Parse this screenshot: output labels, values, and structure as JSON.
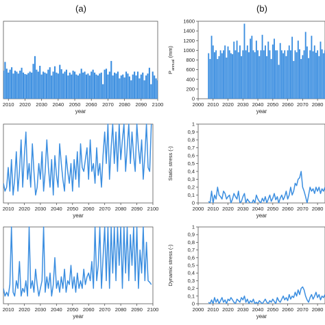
{
  "panel_labels": [
    "(a)",
    "(b)"
  ],
  "chart_data": [
    {
      "id": "a1",
      "type": "bar",
      "title": "",
      "xlabel": "year",
      "ylabel": "",
      "xlim": [
        2007,
        2100
      ],
      "ylim": [
        0,
        1600
      ],
      "show_y_ticks": false,
      "xticks": [
        "2010",
        "2020",
        "2030",
        "2040",
        "2050",
        "2060",
        "2070",
        "2080",
        "2090",
        "2100"
      ],
      "x_start": 2007,
      "values": [
        580,
        760,
        620,
        540,
        600,
        650,
        520,
        580,
        560,
        520,
        580,
        640,
        540,
        510,
        500,
        530,
        560,
        540,
        720,
        880,
        600,
        560,
        680,
        500,
        560,
        540,
        520,
        600,
        650,
        480,
        560,
        670,
        540,
        520,
        700,
        610,
        520,
        560,
        600,
        480,
        540,
        500,
        580,
        560,
        500,
        480,
        520,
        620,
        540,
        560,
        500,
        520,
        480,
        560,
        600,
        540,
        500,
        480,
        520,
        540,
        300,
        600,
        620,
        500,
        560,
        780,
        480,
        540,
        520,
        560,
        420,
        480,
        500,
        440,
        560,
        520,
        460,
        380,
        500,
        560,
        480,
        560,
        420,
        500,
        540,
        380,
        480,
        520,
        640,
        300,
        560,
        480,
        420,
        380
      ]
    },
    {
      "id": "b1",
      "type": "bar",
      "title": "",
      "xlabel": "year",
      "ylabel": "P_annual (mm)",
      "xlim": [
        2000,
        2085
      ],
      "ylim": [
        0,
        1600
      ],
      "xticks": [
        "2000",
        "2010",
        "2020",
        "2030",
        "2040",
        "2050",
        "2060",
        "2070",
        "2080"
      ],
      "yticks": [
        "0",
        "200",
        "400",
        "600",
        "800",
        "1000",
        "1200",
        "1400",
        "1600"
      ],
      "x_start": 2007,
      "values": [
        940,
        820,
        1300,
        1100,
        960,
        1000,
        820,
        880,
        1000,
        940,
        1000,
        1100,
        850,
        1080,
        1000,
        940,
        920,
        1180,
        1000,
        1200,
        960,
        1100,
        880,
        1000,
        1550,
        1000,
        1100,
        960,
        1240,
        1300,
        1000,
        960,
        1200,
        1000,
        880,
        1000,
        1320,
        1000,
        1100,
        880,
        1180,
        1000,
        820,
        1120,
        1240,
        1000,
        1000,
        700,
        1150,
        1000,
        940,
        1000,
        880,
        1000,
        1100,
        1000,
        1280,
        780,
        1000,
        960,
        1200,
        1020,
        820,
        900,
        1000,
        1380,
        1080,
        840,
        1000,
        1300,
        980,
        1100,
        950,
        1000,
        880,
        1180,
        1020,
        940,
        1000
      ]
    },
    {
      "id": "a2",
      "type": "line",
      "title": "",
      "xlabel": "year",
      "ylabel": "",
      "xlim": [
        2007,
        2100
      ],
      "ylim": [
        0,
        1
      ],
      "show_y_ticks": false,
      "xticks": [
        "2010",
        "2020",
        "2030",
        "2040",
        "2050",
        "2060",
        "2070",
        "2080",
        "2090",
        "2100"
      ],
      "x": [
        2007,
        2008,
        2009,
        2010,
        2011,
        2012,
        2013,
        2014,
        2015,
        2016,
        2017,
        2018,
        2019,
        2020,
        2021,
        2022,
        2023,
        2024,
        2025,
        2026,
        2027,
        2028,
        2029,
        2030,
        2031,
        2032,
        2033,
        2034,
        2035,
        2036,
        2037,
        2038,
        2039,
        2040,
        2041,
        2042,
        2043,
        2044,
        2045,
        2046,
        2047,
        2048,
        2049,
        2050,
        2051,
        2052,
        2053,
        2054,
        2055,
        2056,
        2057,
        2058,
        2059,
        2060,
        2061,
        2062,
        2063,
        2064,
        2065,
        2066,
        2067,
        2068,
        2069,
        2070,
        2071,
        2072,
        2073,
        2074,
        2075,
        2076,
        2077,
        2078,
        2079,
        2080,
        2081,
        2082,
        2083,
        2084,
        2085,
        2086,
        2087,
        2088,
        2089,
        2090,
        2091,
        2092,
        2093,
        2094,
        2095,
        2096,
        2097,
        2098,
        2099
      ],
      "y": [
        0.25,
        0.15,
        0.2,
        0.45,
        0.15,
        0.55,
        0.1,
        0.3,
        0.65,
        0.15,
        0.4,
        0.8,
        0.2,
        0.6,
        0.9,
        0.3,
        0.5,
        0.2,
        0.75,
        0.4,
        0.1,
        0.2,
        0.5,
        0.3,
        0.65,
        0.15,
        0.4,
        0.8,
        0.45,
        0.2,
        0.55,
        0.1,
        0.6,
        0.35,
        0.2,
        0.75,
        0.5,
        0.3,
        0.15,
        0.6,
        0.4,
        0.25,
        0.5,
        0.15,
        0.55,
        0.3,
        0.65,
        0.2,
        0.75,
        0.45,
        0.4,
        0.55,
        0.7,
        0.3,
        0.8,
        0.4,
        0.5,
        0.25,
        0.7,
        0.35,
        0.5,
        0.2,
        0.6,
        0.9,
        0.5,
        1.0,
        0.3,
        0.7,
        1.0,
        0.5,
        0.9,
        0.4,
        1.0,
        0.55,
        0.8,
        1.0,
        0.4,
        0.7,
        1.0,
        0.5,
        0.9,
        0.6,
        0.4,
        1.0,
        0.7,
        0.5,
        0.8,
        0.3,
        0.6,
        1.0,
        0.45,
        0.4,
        1.0
      ]
    },
    {
      "id": "b2",
      "type": "line",
      "title": "",
      "xlabel": "year",
      "ylabel": "Static stress (-)",
      "xlim": [
        2000,
        2085
      ],
      "ylim": [
        0,
        1
      ],
      "xticks": [
        "2000",
        "2010",
        "2020",
        "2030",
        "2040",
        "2050",
        "2060",
        "2070",
        "2080"
      ],
      "yticks": [
        "0",
        "0,1",
        "0,2",
        "0,3",
        "0,4",
        "0,5",
        "0,6",
        "0,7",
        "0,8",
        "0,9",
        "1"
      ],
      "x": [
        2007,
        2008,
        2009,
        2010,
        2011,
        2012,
        2013,
        2014,
        2015,
        2016,
        2017,
        2018,
        2019,
        2020,
        2021,
        2022,
        2023,
        2024,
        2025,
        2026,
        2027,
        2028,
        2029,
        2030,
        2031,
        2032,
        2033,
        2034,
        2035,
        2036,
        2037,
        2038,
        2039,
        2040,
        2041,
        2042,
        2043,
        2044,
        2045,
        2046,
        2047,
        2048,
        2049,
        2050,
        2051,
        2052,
        2053,
        2054,
        2055,
        2056,
        2057,
        2058,
        2059,
        2060,
        2061,
        2062,
        2063,
        2064,
        2065,
        2066,
        2067,
        2068,
        2069,
        2070,
        2071,
        2072,
        2073,
        2074,
        2075,
        2076,
        2077,
        2078,
        2079,
        2080,
        2081,
        2082,
        2083,
        2084,
        2085
      ],
      "y": [
        0.02,
        0,
        0.15,
        0,
        0.1,
        0.05,
        0.2,
        0.1,
        0.08,
        0.05,
        0.15,
        0.12,
        0.05,
        0.08,
        0.1,
        0,
        0.05,
        0.12,
        0.08,
        0.05,
        0.15,
        0,
        0.02,
        0.08,
        0.12,
        0,
        0.05,
        0.02,
        0,
        0,
        0.04,
        0,
        0.1,
        0.05,
        0.02,
        0,
        0.06,
        0.02,
        0.08,
        0,
        0.05,
        0.1,
        0.02,
        0.06,
        0.12,
        0.04,
        0.08,
        0,
        0.06,
        0.1,
        0.04,
        0.08,
        0.15,
        0.05,
        0.1,
        0.2,
        0.1,
        0.15,
        0.25,
        0.22,
        0.3,
        0.32,
        0.4,
        0.2,
        0.15,
        0.08,
        0,
        0.1,
        0.2,
        0.15,
        0.18,
        0.12,
        0.2,
        0.15,
        0.2,
        0.12,
        0.18,
        0.15,
        0.2
      ]
    },
    {
      "id": "a3",
      "type": "line",
      "title": "",
      "xlabel": "year",
      "ylabel": "",
      "xlim": [
        2007,
        2100
      ],
      "ylim": [
        0,
        1
      ],
      "show_y_ticks": false,
      "xticks": [
        "2010",
        "2020",
        "2030",
        "2040",
        "2050",
        "2060",
        "2070",
        "2080",
        "2090",
        "2100"
      ],
      "x": [
        2007,
        2008,
        2009,
        2010,
        2011,
        2012,
        2013,
        2014,
        2015,
        2016,
        2017,
        2018,
        2019,
        2020,
        2021,
        2022,
        2023,
        2024,
        2025,
        2026,
        2027,
        2028,
        2029,
        2030,
        2031,
        2032,
        2033,
        2034,
        2035,
        2036,
        2037,
        2038,
        2039,
        2040,
        2041,
        2042,
        2043,
        2044,
        2045,
        2046,
        2047,
        2048,
        2049,
        2050,
        2051,
        2052,
        2053,
        2054,
        2055,
        2056,
        2057,
        2058,
        2059,
        2060,
        2061,
        2062,
        2063,
        2064,
        2065,
        2066,
        2067,
        2068,
        2069,
        2070,
        2071,
        2072,
        2073,
        2074,
        2075,
        2076,
        2077,
        2078,
        2079,
        2080,
        2081,
        2082,
        2083,
        2084,
        2085,
        2086,
        2087,
        2088,
        2089,
        2090,
        2091,
        2092,
        2093,
        2094,
        2095,
        2096,
        2097,
        2098,
        2099
      ],
      "y": [
        0.2,
        0.1,
        0.15,
        0.1,
        0.25,
        1.0,
        0.15,
        0.1,
        0.3,
        0.2,
        0.55,
        0.1,
        0.2,
        0.15,
        0.3,
        0.1,
        1.0,
        0.2,
        0.3,
        0.15,
        0.45,
        0.25,
        0.1,
        0.2,
        0.3,
        1.0,
        0.15,
        0.35,
        0.2,
        0.4,
        0.1,
        0.25,
        0.6,
        0.2,
        0.3,
        0.15,
        0.35,
        0.2,
        0.45,
        0.15,
        0.3,
        0.25,
        0.5,
        0.2,
        0.35,
        0.15,
        0.4,
        0.2,
        0.3,
        0.2,
        0.45,
        0.25,
        0.35,
        0.4,
        0.3,
        0.55,
        0.2,
        1.0,
        0.3,
        0.5,
        1.0,
        0.2,
        0.6,
        1.0,
        0.3,
        1.0,
        0.2,
        1.0,
        0.4,
        1.0,
        0.3,
        1.0,
        0.5,
        1.0,
        0.2,
        1.0,
        0.4,
        1.0,
        0.3,
        0.9,
        0.5,
        1.0,
        0.3,
        1.0,
        0.2,
        0.7,
        0.4,
        1.0,
        0.3,
        0.8,
        0.3,
        0.28,
        0.25
      ]
    },
    {
      "id": "b3",
      "type": "line",
      "title": "",
      "xlabel": "year",
      "ylabel": "Dynamic stress (-)",
      "xlim": [
        2000,
        2085
      ],
      "ylim": [
        0,
        1
      ],
      "xticks": [
        "2000",
        "2010",
        "2020",
        "2030",
        "2040",
        "2050",
        "2060",
        "2070",
        "2080"
      ],
      "yticks": [
        "0",
        "0,1",
        "0,2",
        "0,3",
        "0,4",
        "0,5",
        "0,6",
        "0,7",
        "0,8",
        "0,9",
        "1"
      ],
      "x": [
        2007,
        2008,
        2009,
        2010,
        2011,
        2012,
        2013,
        2014,
        2015,
        2016,
        2017,
        2018,
        2019,
        2020,
        2021,
        2022,
        2023,
        2024,
        2025,
        2026,
        2027,
        2028,
        2029,
        2030,
        2031,
        2032,
        2033,
        2034,
        2035,
        2036,
        2037,
        2038,
        2039,
        2040,
        2041,
        2042,
        2043,
        2044,
        2045,
        2046,
        2047,
        2048,
        2049,
        2050,
        2051,
        2052,
        2053,
        2054,
        2055,
        2056,
        2057,
        2058,
        2059,
        2060,
        2061,
        2062,
        2063,
        2064,
        2065,
        2066,
        2067,
        2068,
        2069,
        2070,
        2071,
        2072,
        2073,
        2074,
        2075,
        2076,
        2077,
        2078,
        2079,
        2080,
        2081,
        2082,
        2083,
        2084,
        2085
      ],
      "y": [
        0.02,
        0,
        0.05,
        0,
        0.08,
        0.02,
        0.06,
        0,
        0.04,
        0.08,
        0.02,
        0.05,
        0,
        0.06,
        0.04,
        0.08,
        0.05,
        0.02,
        0,
        0.06,
        0.04,
        0.02,
        0.08,
        0.05,
        0.1,
        0.02,
        0.06,
        0,
        0.04,
        0.02,
        0.06,
        0,
        0.02,
        0,
        0.04,
        0.02,
        0,
        0.03,
        0.06,
        0.02,
        0,
        0.04,
        0.02,
        0.06,
        0.03,
        0,
        0.08,
        0.04,
        0.02,
        0.06,
        0.1,
        0.05,
        0.08,
        0.04,
        0.12,
        0.06,
        0.1,
        0.08,
        0.15,
        0.1,
        0.18,
        0.12,
        0.2,
        0.22,
        0.18,
        0.1,
        0.05,
        0.02,
        0.08,
        0.12,
        0.06,
        0.1,
        0.15,
        0.08,
        0.12,
        0.05,
        0.1,
        0.08,
        0.12
      ]
    }
  ]
}
